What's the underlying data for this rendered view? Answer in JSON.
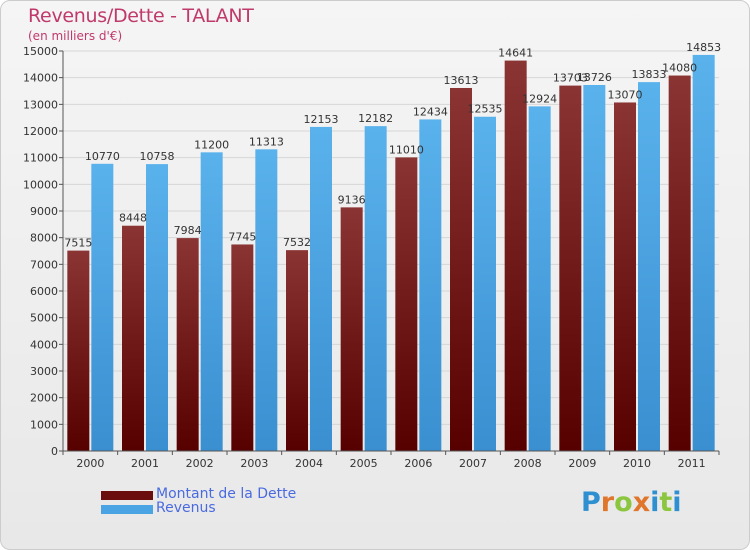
{
  "header": {
    "title": "Revenus/Dette - TALANT",
    "subtitle": "(en milliers d'€)"
  },
  "legend": {
    "items": [
      {
        "label": "Montant de la Dette",
        "color": "#6b0d0d"
      },
      {
        "label": "Revenus",
        "color": "#4aa3e2"
      }
    ]
  },
  "logo": {
    "letters": [
      "P",
      "r",
      "o",
      "x",
      "i",
      "t",
      "i"
    ],
    "colors": [
      "#2e8fd1",
      "#e0762b",
      "#8cc63f",
      "#e0762b",
      "#2e8fd1",
      "#8cc63f",
      "#2e8fd1"
    ]
  },
  "chart_data": {
    "type": "bar",
    "categories": [
      "2000",
      "2001",
      "2002",
      "2003",
      "2004",
      "2005",
      "2006",
      "2007",
      "2008",
      "2009",
      "2010",
      "2011"
    ],
    "series": [
      {
        "name": "Montant de la Dette",
        "values": [
          7515,
          8448,
          7984,
          7745,
          7532,
          9136,
          11010,
          13613,
          14641,
          13703,
          13070,
          14080
        ],
        "labels": [
          "7515",
          "8448",
          "7984",
          "7745",
          "7532",
          "9136",
          "11010",
          "13613",
          "14641",
          "13703",
          "13070",
          "14080"
        ],
        "color_top": "#8a3434",
        "color_bottom": "#560000"
      },
      {
        "name": "Revenus",
        "values": [
          10770,
          10758,
          11200,
          11313,
          12153,
          12182,
          12434,
          12535,
          12924,
          13726,
          13833,
          14853
        ],
        "labels": [
          "10770",
          "10758",
          "11200",
          "11313",
          "12153",
          "12182",
          "12434",
          "12535",
          "12924",
          "13726",
          "13833",
          "14853"
        ],
        "color_top": "#5ab2ec",
        "color_bottom": "#3a8fd0"
      }
    ],
    "ylim": [
      0,
      15000
    ],
    "yticks": [
      "0",
      "1000",
      "2000",
      "3000",
      "4000",
      "5000",
      "6000",
      "7000",
      "8000",
      "9000",
      "10000",
      "11000",
      "12000",
      "13000",
      "14000",
      "15000"
    ],
    "grid": true,
    "legend_position": "bottom-left"
  }
}
